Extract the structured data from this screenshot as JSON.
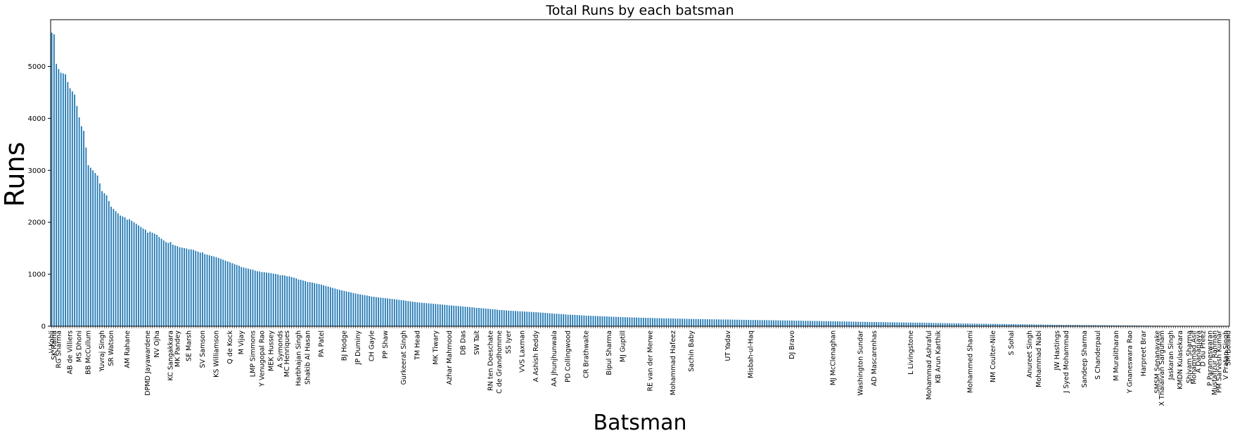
{
  "chart_data": {
    "type": "bar",
    "title": "Total Runs by each batsman",
    "xlabel": "Batsman",
    "ylabel": "Runs",
    "ylim": [
      0,
      5900
    ],
    "yticks": [
      0,
      1000,
      2000,
      3000,
      4000,
      5000
    ],
    "bar_count": 516,
    "grid": false,
    "legend": "none",
    "bar_color": "#1f77b4",
    "labeled_bars": [
      {
        "index": 0,
        "label": "V Kohli",
        "value": 5650
      },
      {
        "index": 1,
        "label": "SK Raina",
        "value": 5620
      },
      {
        "index": 3,
        "label": "RG Sharma",
        "value": 4950
      },
      {
        "index": 8,
        "label": "AB de Villiers",
        "value": 4580
      },
      {
        "index": 12,
        "label": "MS Dhoni",
        "value": 4020
      },
      {
        "index": 16,
        "label": "BB McCullum",
        "value": 3100
      },
      {
        "index": 22,
        "label": "Yuvraj Singh",
        "value": 2600
      },
      {
        "index": 26,
        "label": "SR Watson",
        "value": 2300
      },
      {
        "index": 33,
        "label": "AM Rahane",
        "value": 2050
      },
      {
        "index": 42,
        "label": "DPMD Jayawardene",
        "value": 1800
      },
      {
        "index": 46,
        "label": "NV Ojha",
        "value": 1760
      },
      {
        "index": 52,
        "label": "KC Sangakkara",
        "value": 1620
      },
      {
        "index": 55,
        "label": "MK Pandey",
        "value": 1540
      },
      {
        "index": 60,
        "label": "SE Marsh",
        "value": 1480
      },
      {
        "index": 66,
        "label": "SV Samson",
        "value": 1420
      },
      {
        "index": 72,
        "label": "KS Williamson",
        "value": 1330
      },
      {
        "index": 78,
        "label": "Q de Kock",
        "value": 1230
      },
      {
        "index": 83,
        "label": "M Vijay",
        "value": 1140
      },
      {
        "index": 88,
        "label": "LMP Simmons",
        "value": 1090
      },
      {
        "index": 92,
        "label": "Y Venugopal Rao",
        "value": 1040
      },
      {
        "index": 96,
        "label": "MEK Hussey",
        "value": 1020
      },
      {
        "index": 100,
        "label": "A Symonds",
        "value": 980
      },
      {
        "index": 103,
        "label": "MC Henriques",
        "value": 960
      },
      {
        "index": 108,
        "label": "Harbhajan Singh",
        "value": 900
      },
      {
        "index": 112,
        "label": "Shakib Al Hasan",
        "value": 850
      },
      {
        "index": 118,
        "label": "PA Patel",
        "value": 800
      },
      {
        "index": 128,
        "label": "BJ Hodge",
        "value": 680
      },
      {
        "index": 134,
        "label": "JP Duminy",
        "value": 620
      },
      {
        "index": 140,
        "label": "CH Gayle",
        "value": 570
      },
      {
        "index": 146,
        "label": "PP Shaw",
        "value": 540
      },
      {
        "index": 154,
        "label": "Gurkeerat Singh",
        "value": 500
      },
      {
        "index": 160,
        "label": "TM Head",
        "value": 460
      },
      {
        "index": 168,
        "label": "MK Tiwary",
        "value": 430
      },
      {
        "index": 174,
        "label": "Azhar Mahmood",
        "value": 400
      },
      {
        "index": 180,
        "label": "DB Das",
        "value": 380
      },
      {
        "index": 186,
        "label": "SW Tait",
        "value": 350
      },
      {
        "index": 192,
        "label": "RN ten Doeschate",
        "value": 330
      },
      {
        "index": 196,
        "label": "C de Grandhomme",
        "value": 310
      },
      {
        "index": 200,
        "label": "SS Iyer",
        "value": 300
      },
      {
        "index": 206,
        "label": "VVS Laxman",
        "value": 285
      },
      {
        "index": 212,
        "label": "A Ashish Reddy",
        "value": 270
      },
      {
        "index": 220,
        "label": "AA Jhunjhunwala",
        "value": 240
      },
      {
        "index": 226,
        "label": "PD Collingwood",
        "value": 220
      },
      {
        "index": 234,
        "label": "CR Brathwaite",
        "value": 200
      },
      {
        "index": 244,
        "label": "Bipul Sharma",
        "value": 185
      },
      {
        "index": 250,
        "label": "MJ Guptill",
        "value": 175
      },
      {
        "index": 262,
        "label": "RE van der Merwe",
        "value": 160
      },
      {
        "index": 272,
        "label": "Mohammad Hafeez",
        "value": 150
      },
      {
        "index": 280,
        "label": "Sachin Baby",
        "value": 140
      },
      {
        "index": 296,
        "label": "UT Yadav",
        "value": 130
      },
      {
        "index": 306,
        "label": "Misbah-ul-Haq",
        "value": 120
      },
      {
        "index": 324,
        "label": "DJ Bravo",
        "value": 110
      },
      {
        "index": 342,
        "label": "MJ McClenaghan",
        "value": 95
      },
      {
        "index": 354,
        "label": "Washington Sundar",
        "value": 85
      },
      {
        "index": 360,
        "label": "AD Mascarenhas",
        "value": 80
      },
      {
        "index": 376,
        "label": "L Livingstone",
        "value": 70
      },
      {
        "index": 384,
        "label": "Mohammad Ashraful",
        "value": 65
      },
      {
        "index": 388,
        "label": "KB Arun Karthik",
        "value": 60
      },
      {
        "index": 402,
        "label": "Mohammed Shami",
        "value": 50
      },
      {
        "index": 412,
        "label": "NM Coulter-Nile",
        "value": 45
      },
      {
        "index": 420,
        "label": "S Sohal",
        "value": 40
      },
      {
        "index": 428,
        "label": "Anureet Singh",
        "value": 35
      },
      {
        "index": 432,
        "label": "Mohammad Nabi",
        "value": 32
      },
      {
        "index": 440,
        "label": "JW Hastings",
        "value": 28
      },
      {
        "index": 444,
        "label": "J Syed Mohammad",
        "value": 26
      },
      {
        "index": 452,
        "label": "Sandeep Sharma",
        "value": 22
      },
      {
        "index": 458,
        "label": "S Chanderpaul",
        "value": 20
      },
      {
        "index": 466,
        "label": "M Muralitharan",
        "value": 16
      },
      {
        "index": 472,
        "label": "Y Gnaneswara Rao",
        "value": 14
      },
      {
        "index": 478,
        "label": "Harpreet Brar",
        "value": 12
      },
      {
        "index": 484,
        "label": "SMSM Senanayake",
        "value": 10
      },
      {
        "index": 486,
        "label": "X Thalaivan Sargunam",
        "value": 9
      },
      {
        "index": 490,
        "label": "Jaskaran Singh",
        "value": 7
      },
      {
        "index": 494,
        "label": "KMDN Kulasekara",
        "value": 6
      },
      {
        "index": 498,
        "label": "Shivam Sharma",
        "value": 5
      },
      {
        "index": 500,
        "label": "Mohammad Asif",
        "value": 4
      },
      {
        "index": 502,
        "label": "A Dananjaya",
        "value": 3
      },
      {
        "index": 504,
        "label": "D du Preez",
        "value": 3
      },
      {
        "index": 507,
        "label": "P Parameswaran",
        "value": 2
      },
      {
        "index": 509,
        "label": "Mustafizur Rahman",
        "value": 2
      },
      {
        "index": 511,
        "label": "PM Sarvesh Kumar",
        "value": 1
      },
      {
        "index": 514,
        "label": "V Pratap Singh",
        "value": 1
      },
      {
        "index": 515,
        "label": "SM Boland",
        "value": 0
      }
    ],
    "approx_profile": [
      [
        0,
        5650
      ],
      [
        1,
        5620
      ],
      [
        2,
        5050
      ],
      [
        3,
        4950
      ],
      [
        4,
        4880
      ],
      [
        6,
        4850
      ],
      [
        7,
        4700
      ],
      [
        8,
        4580
      ],
      [
        10,
        4460
      ],
      [
        12,
        4020
      ],
      [
        13,
        3850
      ],
      [
        14,
        3760
      ],
      [
        15,
        3440
      ],
      [
        16,
        3100
      ],
      [
        18,
        3000
      ],
      [
        20,
        2900
      ],
      [
        22,
        2600
      ],
      [
        24,
        2520
      ],
      [
        26,
        2300
      ],
      [
        30,
        2130
      ],
      [
        34,
        2060
      ],
      [
        40,
        1880
      ],
      [
        45,
        1780
      ],
      [
        50,
        1620
      ],
      [
        56,
        1520
      ],
      [
        62,
        1470
      ],
      [
        66,
        1400
      ],
      [
        72,
        1330
      ],
      [
        78,
        1230
      ],
      [
        84,
        1130
      ],
      [
        90,
        1060
      ],
      [
        96,
        1020
      ],
      [
        104,
        960
      ],
      [
        110,
        880
      ],
      [
        118,
        800
      ],
      [
        126,
        700
      ],
      [
        134,
        620
      ],
      [
        142,
        560
      ],
      [
        150,
        520
      ],
      [
        160,
        460
      ],
      [
        170,
        420
      ],
      [
        180,
        380
      ],
      [
        190,
        340
      ],
      [
        200,
        300
      ],
      [
        212,
        270
      ],
      [
        224,
        230
      ],
      [
        236,
        200
      ],
      [
        250,
        175
      ],
      [
        265,
        155
      ],
      [
        280,
        140
      ],
      [
        300,
        125
      ],
      [
        320,
        112
      ],
      [
        340,
        97
      ],
      [
        360,
        80
      ],
      [
        380,
        68
      ],
      [
        400,
        52
      ],
      [
        420,
        40
      ],
      [
        440,
        28
      ],
      [
        460,
        20
      ],
      [
        480,
        11
      ],
      [
        500,
        4
      ],
      [
        515,
        0
      ]
    ]
  }
}
